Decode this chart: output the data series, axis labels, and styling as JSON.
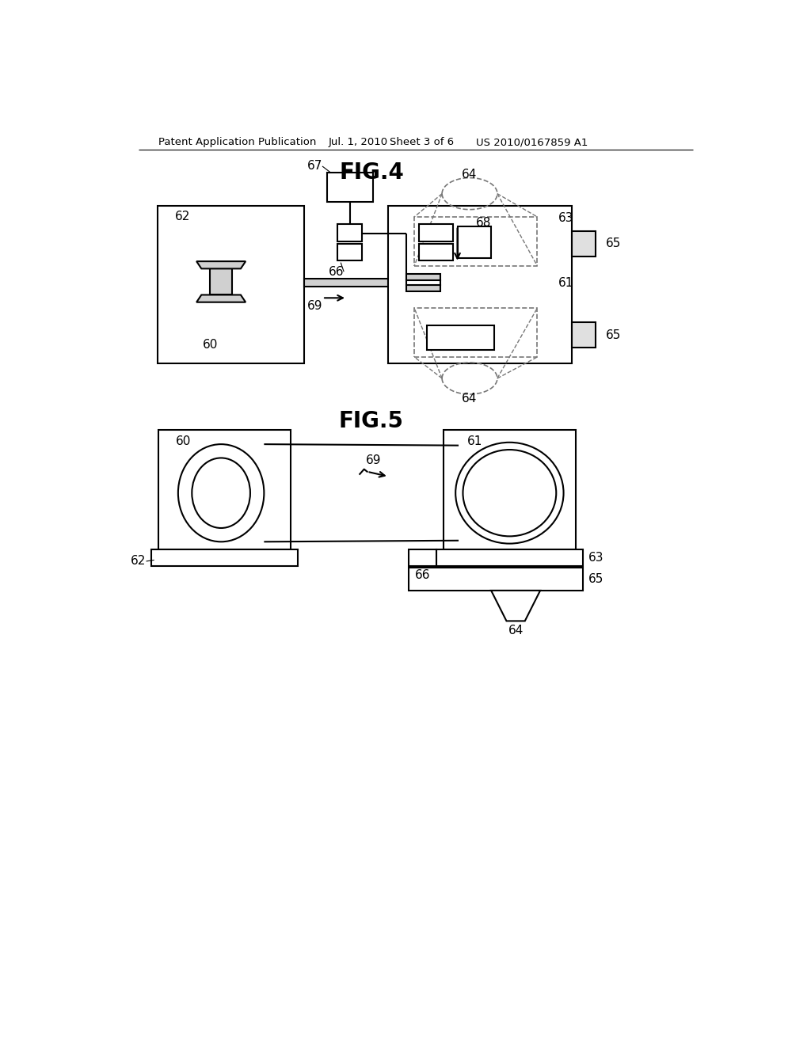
{
  "background_color": "#ffffff",
  "header_text": "Patent Application Publication",
  "header_date": "Jul. 1, 2010",
  "header_sheet": "Sheet 3 of 6",
  "header_patent": "US 2010/0167859 A1",
  "fig4_title": "FIG.4",
  "fig5_title": "FIG.5",
  "line_color": "#000000",
  "line_width": 1.5,
  "dashed_color": "#777777"
}
